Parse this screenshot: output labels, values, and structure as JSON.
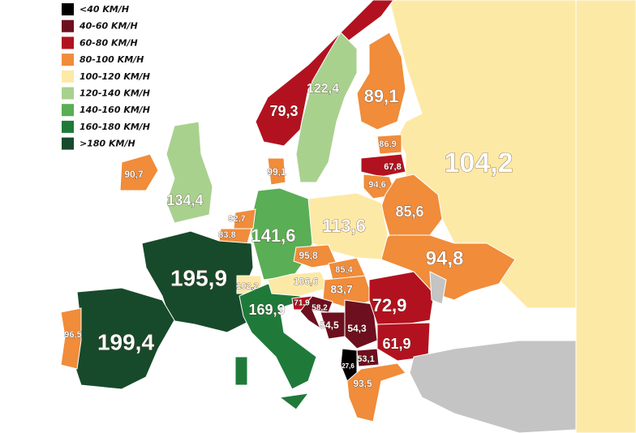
{
  "legend": {
    "items": [
      {
        "label": "<40 KM/H",
        "color": "#000000"
      },
      {
        "label": "40-60 KM/H",
        "color": "#6d0f1e"
      },
      {
        "label": "60-80 KM/H",
        "color": "#b2121f"
      },
      {
        "label": "80-100 KM/H",
        "color": "#f08c3a"
      },
      {
        "label": "100-120 KM/H",
        "color": "#fde9a6"
      },
      {
        "label": "120-140 KM/H",
        "color": "#a9d18e"
      },
      {
        "label": "140-160 KM/H",
        "color": "#5aae55"
      },
      {
        "label": "160-180 KM/H",
        "color": "#1f7a3a"
      },
      {
        "label": ">180 KM/H",
        "color": "#174a2a"
      }
    ]
  },
  "labels": [
    "79,3",
    "122,4",
    "89,1",
    "86,9",
    "67,8",
    "94,6",
    "104,2",
    "90,7",
    "134,4",
    "99,1",
    "92,7",
    "83,8",
    "141,6",
    "113,6",
    "85,6",
    "94,8",
    "95,8",
    "85,4",
    "106,6",
    "83,7",
    "102,2",
    "195,9",
    "169,9",
    "199,4",
    "96,5",
    "71,9",
    "58,2",
    "54,5",
    "54,3",
    "72,9",
    "61,9",
    "53,1",
    "27,6",
    "93,5"
  ]
}
